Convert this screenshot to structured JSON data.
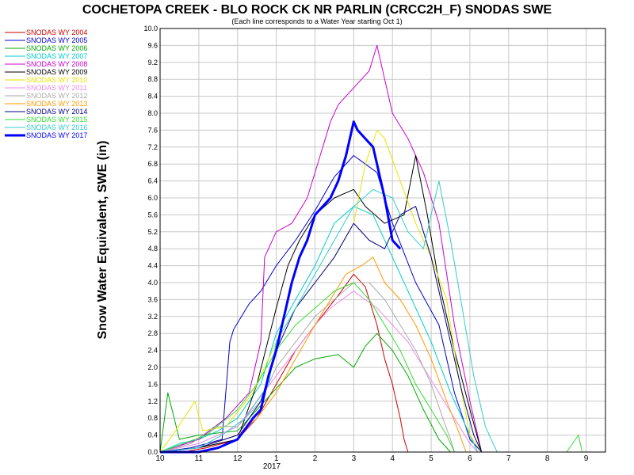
{
  "chart_data": {
    "type": "line",
    "title": "COCHETOPA CREEK - BLO ROCK CK NR PARLIN (CRCC2H_F) SNODAS SWE",
    "subtitle": "(Each line corresponds to a Water Year starting Oct 1)",
    "ylabel": "Snow Water Equivalent, SWE (in)",
    "xlabel": "",
    "year_label": "2017",
    "ylim": [
      0,
      10
    ],
    "xlim": [
      0,
      11.5
    ],
    "x_units": "months since Oct 1 (water year)",
    "y_ticks": [
      "0.0",
      "0.4",
      "0.8",
      "1.2",
      "1.6",
      "2.0",
      "2.4",
      "2.8",
      "3.2",
      "3.6",
      "4.0",
      "4.4",
      "4.8",
      "5.2",
      "5.6",
      "6.0",
      "6.4",
      "6.8",
      "7.2",
      "7.6",
      "8.0",
      "8.4",
      "8.8",
      "9.2",
      "9.6",
      "10.0"
    ],
    "x_ticks": [
      {
        "x": 0,
        "label": "10"
      },
      {
        "x": 1,
        "label": "11"
      },
      {
        "x": 2,
        "label": "12"
      },
      {
        "x": 3,
        "label": "1"
      },
      {
        "x": 4,
        "label": "2"
      },
      {
        "x": 5,
        "label": "3"
      },
      {
        "x": 6,
        "label": "4"
      },
      {
        "x": 7,
        "label": "5"
      },
      {
        "x": 8,
        "label": "6"
      },
      {
        "x": 9,
        "label": "7"
      },
      {
        "x": 10,
        "label": "8"
      },
      {
        "x": 11,
        "label": "9"
      }
    ],
    "grid": true,
    "legend_position": "top-left, outside plot",
    "series": [
      {
        "name": "SNODAS WY 2004",
        "color": "#cc0000",
        "width": 1,
        "points": [
          [
            0,
            0
          ],
          [
            0.6,
            0
          ],
          [
            1.2,
            0.1
          ],
          [
            2,
            0.3
          ],
          [
            2.5,
            0.8
          ],
          [
            3,
            1.6
          ],
          [
            3.5,
            2.4
          ],
          [
            4,
            3.0
          ],
          [
            4.6,
            3.7
          ],
          [
            5,
            4.2
          ],
          [
            5.3,
            3.9
          ],
          [
            5.6,
            3.0
          ],
          [
            5.8,
            2.2
          ],
          [
            6,
            1.6
          ],
          [
            6.2,
            0.8
          ],
          [
            6.3,
            0.3
          ],
          [
            6.4,
            0
          ]
        ]
      },
      {
        "name": "SNODAS WY 2005",
        "color": "#0000cc",
        "width": 1,
        "points": [
          [
            0,
            0
          ],
          [
            0.8,
            0.1
          ],
          [
            1.6,
            0.3
          ],
          [
            1.8,
            2.6
          ],
          [
            1.9,
            2.9
          ],
          [
            2.3,
            3.5
          ],
          [
            2.6,
            3.8
          ],
          [
            3,
            4.4
          ],
          [
            3.5,
            5.0
          ],
          [
            4,
            5.7
          ],
          [
            4.5,
            6.5
          ],
          [
            5,
            7.0
          ],
          [
            5.3,
            6.8
          ],
          [
            5.6,
            6.6
          ],
          [
            6,
            5.4
          ],
          [
            6.6,
            4.0
          ],
          [
            7.2,
            3.0
          ],
          [
            7.6,
            1.4
          ],
          [
            8,
            0.3
          ],
          [
            8.3,
            0
          ]
        ]
      },
      {
        "name": "SNODAS WY 2006",
        "color": "#00aa00",
        "width": 1,
        "points": [
          [
            0,
            0
          ],
          [
            0.2,
            1.4
          ],
          [
            0.5,
            0.3
          ],
          [
            1,
            0.4
          ],
          [
            2,
            0.5
          ],
          [
            3,
            1.5
          ],
          [
            3.5,
            2.0
          ],
          [
            4,
            2.2
          ],
          [
            4.6,
            2.3
          ],
          [
            5,
            2.0
          ],
          [
            5.3,
            2.5
          ],
          [
            5.6,
            2.8
          ],
          [
            6,
            2.4
          ],
          [
            6.4,
            1.8
          ],
          [
            6.8,
            1.0
          ],
          [
            7.2,
            0.3
          ],
          [
            7.5,
            0
          ]
        ]
      },
      {
        "name": "SNODAS WY 2007",
        "color": "#00cccc",
        "width": 1,
        "points": [
          [
            0,
            0
          ],
          [
            0.5,
            0.2
          ],
          [
            1,
            0.3
          ],
          [
            1.5,
            0.5
          ],
          [
            2,
            0.8
          ],
          [
            2.6,
            1.6
          ],
          [
            3,
            2.8
          ],
          [
            3.5,
            3.6
          ],
          [
            4,
            4.4
          ],
          [
            4.5,
            5.4
          ],
          [
            5,
            5.8
          ],
          [
            5.5,
            5.6
          ],
          [
            6,
            4.6
          ],
          [
            6.5,
            3.6
          ],
          [
            7,
            2.6
          ],
          [
            7.5,
            1.4
          ],
          [
            7.9,
            0.6
          ],
          [
            8.2,
            0
          ]
        ]
      },
      {
        "name": "SNODAS WY 2008",
        "color": "#cc00cc",
        "width": 1,
        "points": [
          [
            0,
            0
          ],
          [
            1,
            0.3
          ],
          [
            1.7,
            0.8
          ],
          [
            2.3,
            1.4
          ],
          [
            2.6,
            2.6
          ],
          [
            2.7,
            4.6
          ],
          [
            3,
            5.2
          ],
          [
            3.4,
            5.4
          ],
          [
            3.8,
            6.0
          ],
          [
            4,
            6.6
          ],
          [
            4.4,
            7.8
          ],
          [
            4.6,
            8.2
          ],
          [
            5,
            8.6
          ],
          [
            5.4,
            9.0
          ],
          [
            5.6,
            9.6
          ],
          [
            5.8,
            8.8
          ],
          [
            6,
            8.0
          ],
          [
            6.4,
            7.4
          ],
          [
            6.8,
            6.6
          ],
          [
            7.2,
            5.4
          ],
          [
            7.6,
            3.0
          ],
          [
            8,
            1.2
          ],
          [
            8.3,
            0
          ]
        ]
      },
      {
        "name": "SNODAS WY 2009",
        "color": "#000000",
        "width": 1,
        "points": [
          [
            0,
            0
          ],
          [
            1,
            0.1
          ],
          [
            2,
            0.3
          ],
          [
            2.5,
            1.6
          ],
          [
            3,
            3.4
          ],
          [
            3.3,
            4.4
          ],
          [
            3.6,
            5.0
          ],
          [
            4,
            5.6
          ],
          [
            4.5,
            6.0
          ],
          [
            5,
            6.2
          ],
          [
            5.3,
            5.8
          ],
          [
            5.8,
            5.4
          ],
          [
            6.3,
            5.6
          ],
          [
            6.6,
            7.0
          ],
          [
            6.9,
            5.6
          ],
          [
            7.2,
            4.0
          ],
          [
            7.6,
            2.4
          ],
          [
            8,
            1.0
          ],
          [
            8.3,
            0
          ]
        ]
      },
      {
        "name": "SNODAS WY 2010",
        "color": "#e6e600",
        "width": 1,
        "points": [
          [
            0,
            0
          ],
          [
            0.4,
            0.5
          ],
          [
            0.9,
            1.2
          ],
          [
            1.1,
            0.5
          ],
          [
            1.7,
            0.6
          ],
          [
            2.4,
            1.4
          ],
          [
            3,
            2.6
          ],
          [
            3.5,
            3.4
          ],
          [
            4,
            4.0
          ],
          [
            4.5,
            4.6
          ],
          [
            5,
            5.4
          ],
          [
            5.3,
            6.8
          ],
          [
            5.6,
            7.6
          ],
          [
            5.8,
            7.4
          ],
          [
            6.2,
            6.4
          ],
          [
            6.6,
            5.4
          ],
          [
            7,
            4.6
          ],
          [
            7.4,
            3.6
          ],
          [
            7.7,
            1.8
          ],
          [
            8,
            0.4
          ],
          [
            8.3,
            0
          ]
        ]
      },
      {
        "name": "SNODAS WY 2011",
        "color": "#ee88ee",
        "width": 1,
        "points": [
          [
            0,
            0
          ],
          [
            1,
            0.2
          ],
          [
            2,
            0.6
          ],
          [
            2.5,
            1.2
          ],
          [
            3,
            1.8
          ],
          [
            3.5,
            2.4
          ],
          [
            4,
            3.0
          ],
          [
            4.4,
            3.4
          ],
          [
            5,
            3.8
          ],
          [
            5.6,
            3.4
          ],
          [
            6,
            3.0
          ],
          [
            6.4,
            2.6
          ],
          [
            6.8,
            2.0
          ],
          [
            7.2,
            1.4
          ],
          [
            7.6,
            0.8
          ],
          [
            8,
            0.2
          ],
          [
            8.2,
            0
          ]
        ]
      },
      {
        "name": "SNODAS WY 2012",
        "color": "#aaaaaa",
        "width": 1,
        "points": [
          [
            0,
            0
          ],
          [
            0.8,
            0.2
          ],
          [
            1.4,
            0.6
          ],
          [
            2,
            0.6
          ],
          [
            2.6,
            1.2
          ],
          [
            3,
            2.0
          ],
          [
            3.5,
            2.6
          ],
          [
            4,
            3.2
          ],
          [
            4.5,
            3.6
          ],
          [
            5,
            4.0
          ],
          [
            5.4,
            4.0
          ],
          [
            5.8,
            3.6
          ],
          [
            6.2,
            3.0
          ],
          [
            6.6,
            2.4
          ],
          [
            7,
            1.6
          ],
          [
            7.3,
            0.8
          ],
          [
            7.5,
            0.3
          ],
          [
            7.6,
            0
          ]
        ]
      },
      {
        "name": "SNODAS WY 2013",
        "color": "#ff9900",
        "width": 1,
        "points": [
          [
            0,
            0
          ],
          [
            1,
            0.1
          ],
          [
            2,
            0.4
          ],
          [
            2.5,
            0.8
          ],
          [
            3,
            1.4
          ],
          [
            3.5,
            2.2
          ],
          [
            4,
            3.0
          ],
          [
            4.4,
            3.6
          ],
          [
            4.8,
            4.2
          ],
          [
            5.2,
            4.4
          ],
          [
            5.5,
            4.6
          ],
          [
            5.8,
            4.0
          ],
          [
            6.2,
            3.6
          ],
          [
            6.6,
            3.0
          ],
          [
            7,
            2.2
          ],
          [
            7.4,
            1.2
          ],
          [
            7.7,
            0.5
          ],
          [
            7.9,
            0
          ]
        ]
      },
      {
        "name": "SNODAS WY 2014",
        "color": "#000088",
        "width": 1,
        "points": [
          [
            0,
            0
          ],
          [
            1,
            0.1
          ],
          [
            2,
            0.4
          ],
          [
            2.6,
            1.2
          ],
          [
            3,
            2.4
          ],
          [
            3.5,
            3.4
          ],
          [
            4,
            4.0
          ],
          [
            4.5,
            4.6
          ],
          [
            5,
            5.4
          ],
          [
            5.4,
            5.0
          ],
          [
            5.8,
            4.8
          ],
          [
            6.2,
            5.6
          ],
          [
            6.6,
            5.8
          ],
          [
            7,
            4.6
          ],
          [
            7.4,
            3.0
          ],
          [
            7.8,
            1.4
          ],
          [
            8.1,
            0.4
          ],
          [
            8.3,
            0
          ]
        ]
      },
      {
        "name": "SNODAS WY 2015",
        "color": "#33dd33",
        "width": 1,
        "points": [
          [
            0,
            0
          ],
          [
            0.6,
            0.2
          ],
          [
            1.2,
            0.4
          ],
          [
            2,
            1.0
          ],
          [
            2.5,
            1.6
          ],
          [
            3,
            2.4
          ],
          [
            3.5,
            3.0
          ],
          [
            4,
            3.4
          ],
          [
            4.5,
            3.8
          ],
          [
            5,
            4.0
          ],
          [
            5.4,
            3.6
          ],
          [
            5.8,
            3.0
          ],
          [
            6.2,
            2.4
          ],
          [
            6.6,
            1.6
          ],
          [
            7,
            1.0
          ],
          [
            7.4,
            0.4
          ],
          [
            7.6,
            0
          ],
          [
            10.5,
            0
          ],
          [
            10.8,
            0.4
          ],
          [
            10.9,
            0
          ]
        ]
      },
      {
        "name": "SNODAS WY 2016",
        "color": "#33cccc",
        "width": 1,
        "points": [
          [
            0,
            0
          ],
          [
            1,
            0.1
          ],
          [
            1.6,
            0.4
          ],
          [
            2.2,
            0.8
          ],
          [
            2.8,
            1.6
          ],
          [
            3,
            2.6
          ],
          [
            3.5,
            3.4
          ],
          [
            4,
            4.2
          ],
          [
            4.5,
            5.0
          ],
          [
            5,
            5.8
          ],
          [
            5.5,
            6.2
          ],
          [
            6,
            6.0
          ],
          [
            6.4,
            5.2
          ],
          [
            6.8,
            4.8
          ],
          [
            7.2,
            6.4
          ],
          [
            7.5,
            5.0
          ],
          [
            7.8,
            3.4
          ],
          [
            8.1,
            1.8
          ],
          [
            8.4,
            0.6
          ],
          [
            8.7,
            0
          ]
        ]
      },
      {
        "name": "SNODAS WY 2017",
        "color": "#0000ff",
        "width": 3,
        "points": [
          [
            0,
            0
          ],
          [
            1,
            0
          ],
          [
            1.5,
            0.1
          ],
          [
            2,
            0.3
          ],
          [
            2.4,
            0.8
          ],
          [
            2.6,
            1.0
          ],
          [
            2.8,
            1.8
          ],
          [
            3,
            2.4
          ],
          [
            3.2,
            3.2
          ],
          [
            3.4,
            4.0
          ],
          [
            3.6,
            4.6
          ],
          [
            3.8,
            5.0
          ],
          [
            4,
            5.6
          ],
          [
            4.2,
            5.8
          ],
          [
            4.4,
            6.0
          ],
          [
            4.6,
            6.4
          ],
          [
            4.8,
            7.0
          ],
          [
            5,
            7.8
          ],
          [
            5.1,
            7.6
          ],
          [
            5.3,
            7.4
          ],
          [
            5.5,
            7.2
          ],
          [
            5.6,
            6.8
          ],
          [
            5.8,
            6.0
          ],
          [
            6,
            5.0
          ],
          [
            6.2,
            4.8
          ]
        ]
      }
    ]
  }
}
